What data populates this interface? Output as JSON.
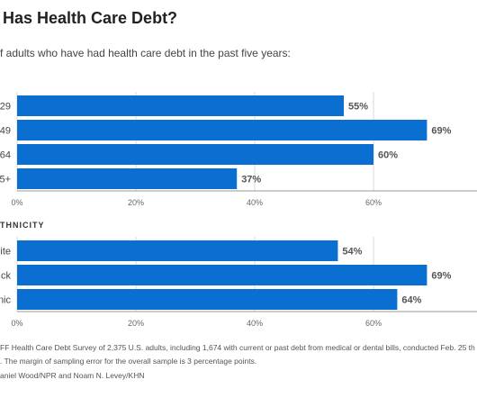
{
  "title": "Has Health Care Debt?",
  "subtitle": "f adults who have had health care debt in the past five years:",
  "section_heading": "THNICITY",
  "footnotes": [
    "FF Health Care Debt Survey of 2,375 U.S. adults, including 1,674 with current or past debt from medical or dental bills, conducted Feb. 25 th",
    ". The margin of sampling error for the overall sample is 3 percentage points.",
    "aniel Wood/NPR and Noam N. Levey/KHN"
  ],
  "colors": {
    "bar": "#0a6fd1",
    "text": "#333333",
    "grid": "#d9d9d9",
    "axis": "#999999"
  },
  "chart_data": [
    {
      "type": "bar",
      "orientation": "horizontal",
      "categories": [
        "29",
        "49",
        "64",
        "5+"
      ],
      "values": [
        55,
        69,
        60,
        37
      ],
      "value_labels": [
        "55%",
        "69%",
        "60%",
        "37%"
      ],
      "x_ticks": [
        "0%",
        "20%",
        "40%",
        "60%"
      ],
      "xlim": [
        0,
        80
      ]
    },
    {
      "type": "bar",
      "orientation": "horizontal",
      "categories": [
        "ite",
        "ck",
        "nic"
      ],
      "values": [
        54,
        69,
        64
      ],
      "value_labels": [
        "54%",
        "69%",
        "64%"
      ],
      "x_ticks": [
        "0%",
        "20%",
        "40%",
        "60%"
      ],
      "xlim": [
        0,
        80
      ]
    }
  ]
}
